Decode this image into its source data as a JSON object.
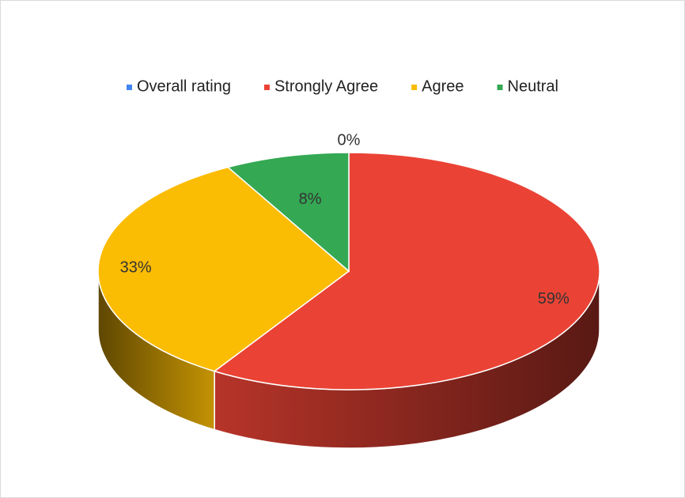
{
  "chart_data": {
    "type": "pie3d",
    "categories": [
      "Overall rating",
      "Strongly Agree",
      "Agree",
      "Neutral"
    ],
    "values": [
      0,
      59,
      33,
      8
    ],
    "value_labels": [
      "0%",
      "59%",
      "33%",
      "8%"
    ],
    "colors": [
      "#4285f4",
      "#ea4335",
      "#fbbc04",
      "#34a853"
    ],
    "legend": "top"
  }
}
